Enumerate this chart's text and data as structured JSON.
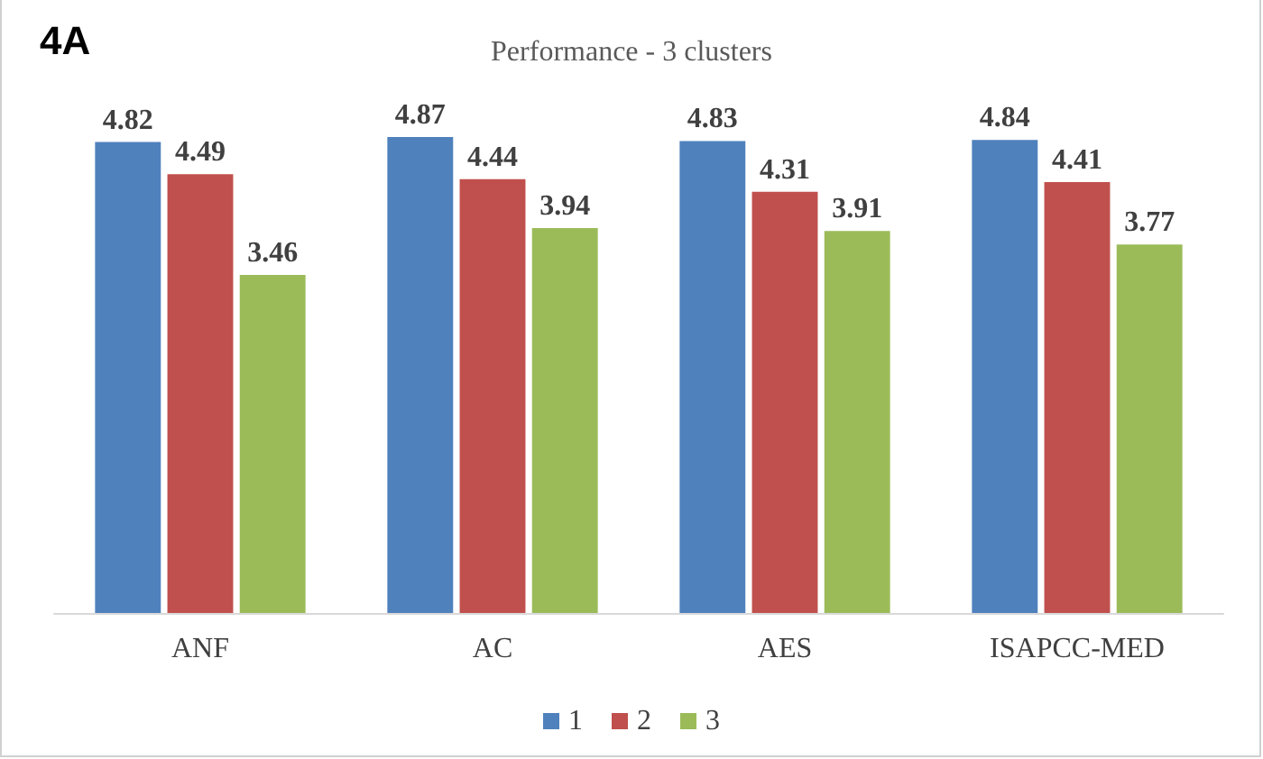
{
  "chart_data": {
    "type": "bar",
    "title": "Performance - 3 clusters",
    "annotations": [
      "4A"
    ],
    "categories": [
      "ANF",
      "AC",
      "AES",
      "ISAPCC-MED"
    ],
    "series": [
      {
        "name": "1",
        "color": "#4f81bd",
        "values": [
          4.82,
          4.87,
          4.83,
          4.84
        ]
      },
      {
        "name": "2",
        "color": "#c0504d",
        "values": [
          4.49,
          4.44,
          4.31,
          4.41
        ]
      },
      {
        "name": "3",
        "color": "#9bbb59",
        "values": [
          3.46,
          3.94,
          3.91,
          3.77
        ]
      }
    ],
    "data_labels": true,
    "legend": "bottom"
  }
}
